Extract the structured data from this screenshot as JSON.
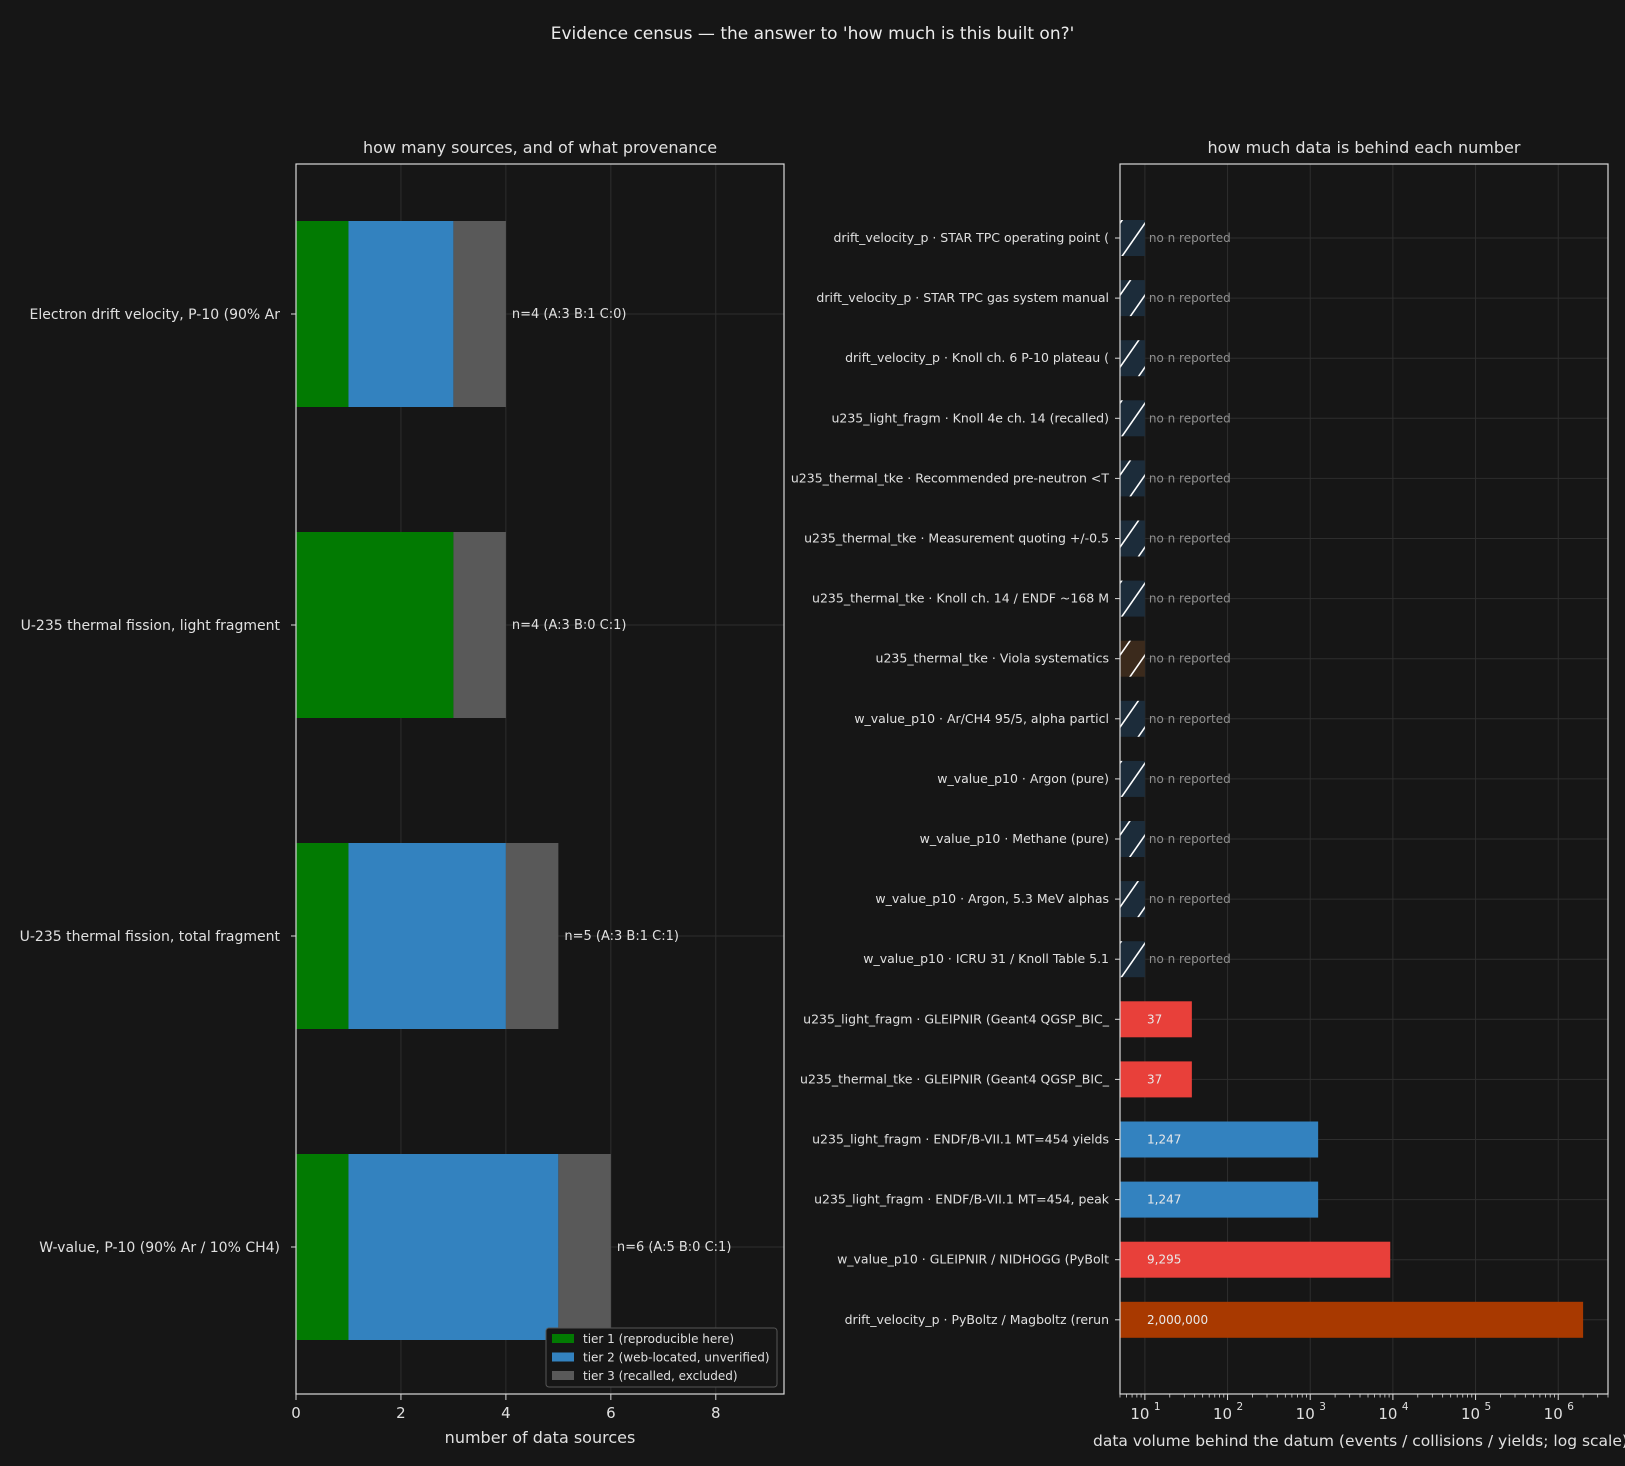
{
  "figure": {
    "title": "Evidence census — the answer to 'how much is this built on?'"
  },
  "chart_data": [
    {
      "type": "bar",
      "orientation": "horizontal",
      "stacked": true,
      "title": "how many sources, and of what provenance",
      "xlabel": "number of data sources",
      "ylabel": "",
      "xlim": [
        0,
        9.3
      ],
      "xticks": [
        0,
        2,
        4,
        6,
        8
      ],
      "grid": true,
      "legend_position": "lower-right",
      "categories": [
        "Electron drift velocity, P-10 (90% Ar",
        "U-235 thermal fission, light fragment",
        "U-235 thermal fission, total fragment",
        "W-value, P-10 (90% Ar / 10% CH4)"
      ],
      "series": [
        {
          "name": "tier 1 (reproducible here)",
          "color": "#027a02",
          "values": [
            1,
            3,
            1,
            1
          ]
        },
        {
          "name": "tier 2 (web-located, unverified)",
          "color": "#3382bf",
          "values": [
            2,
            0,
            3,
            4
          ]
        },
        {
          "name": "tier 3 (recalled, excluded)",
          "color": "#595959",
          "values": [
            1,
            1,
            1,
            1
          ]
        }
      ],
      "annotations": [
        "n=4  (A:3 B:1 C:0)",
        "n=4  (A:3 B:0 C:1)",
        "n=5  (A:3 B:1 C:1)",
        "n=6  (A:5 B:0 C:1)"
      ]
    },
    {
      "type": "bar",
      "orientation": "horizontal",
      "xscale": "log",
      "title": "how much data is behind each number",
      "xlabel": "data volume behind the datum (events / collisions / yields; log scale)",
      "ylabel": "",
      "xlim": [
        5,
        4000000
      ],
      "xticks": [
        10,
        100,
        1000,
        10000,
        100000,
        1000000
      ],
      "xtick_labels": [
        "10",
        "10",
        "10",
        "10",
        "10",
        "10"
      ],
      "xtick_exponents": [
        "1",
        "2",
        "3",
        "4",
        "5",
        "6"
      ],
      "grid": true,
      "no_data_label": "no n reported",
      "no_data_placeholder_value": 10,
      "bars": [
        {
          "label": "drift_velocity_p · STAR TPC operating point (",
          "value": null,
          "color": "#1c2c3a"
        },
        {
          "label": "drift_velocity_p · STAR TPC gas system manual",
          "value": null,
          "color": "#1c2c3a"
        },
        {
          "label": "drift_velocity_p · Knoll ch. 6 P-10 plateau (",
          "value": null,
          "color": "#1c2c3a"
        },
        {
          "label": "u235_light_fragm · Knoll 4e ch. 14 (recalled)",
          "value": null,
          "color": "#1c2c3a"
        },
        {
          "label": "u235_thermal_tke · Recommended pre-neutron <T",
          "value": null,
          "color": "#1c2c3a"
        },
        {
          "label": "u235_thermal_tke · Measurement quoting +/-0.5",
          "value": null,
          "color": "#1c2c3a"
        },
        {
          "label": "u235_thermal_tke · Knoll ch. 14 / ENDF ~168 M",
          "value": null,
          "color": "#1c2c3a"
        },
        {
          "label": "u235_thermal_tke · Viola systematics",
          "value": null,
          "color": "#3b2a1c"
        },
        {
          "label": "w_value_p10 · Ar/CH4 95/5, alpha particl",
          "value": null,
          "color": "#1c2c3a"
        },
        {
          "label": "w_value_p10 · Argon (pure)",
          "value": null,
          "color": "#1c2c3a"
        },
        {
          "label": "w_value_p10 · Methane (pure)",
          "value": null,
          "color": "#1c2c3a"
        },
        {
          "label": "w_value_p10 · Argon, 5.3 MeV alphas",
          "value": null,
          "color": "#1c2c3a"
        },
        {
          "label": "w_value_p10 · ICRU 31 / Knoll Table 5.1",
          "value": null,
          "color": "#1c2c3a"
        },
        {
          "label": "u235_light_fragm · GLEIPNIR (Geant4 QGSP_BIC_",
          "value": 37,
          "value_label": "37",
          "color": "#e8403a"
        },
        {
          "label": "u235_thermal_tke · GLEIPNIR (Geant4 QGSP_BIC_",
          "value": 37,
          "value_label": "37",
          "color": "#e8403a"
        },
        {
          "label": "u235_light_fragm · ENDF/B-VII.1 MT=454 yields",
          "value": 1247,
          "value_label": "1,247",
          "color": "#3382bf"
        },
        {
          "label": "u235_light_fragm · ENDF/B-VII.1 MT=454, peak ",
          "value": 1247,
          "value_label": "1,247",
          "color": "#3382bf"
        },
        {
          "label": "w_value_p10 · GLEIPNIR / NIDHOGG (PyBolt",
          "value": 9295,
          "value_label": "9,295",
          "color": "#e8403a"
        },
        {
          "label": "drift_velocity_p · PyBoltz / Magboltz (rerun ",
          "value": 2000000,
          "value_label": "2,000,000",
          "color": "#a83900"
        }
      ]
    }
  ]
}
